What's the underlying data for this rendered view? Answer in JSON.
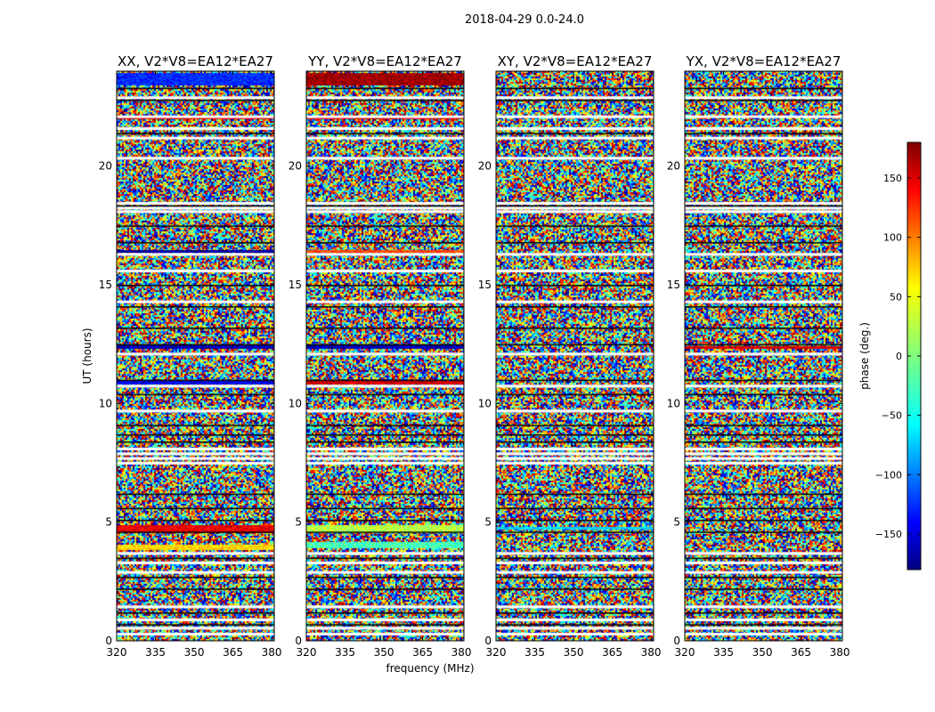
{
  "figure": {
    "suptitle": "2018-04-29 0.0-24.0"
  },
  "chart_data": {
    "type": "heatmap",
    "title": "2018-04-29 0.0-24.0",
    "xlabel": "frequency (MHz)",
    "ylabel": "UT (hours)",
    "xlim": [
      320,
      381
    ],
    "ylim": [
      0,
      24
    ],
    "x_ticks": [
      320,
      335,
      350,
      365,
      380
    ],
    "y_ticks": [
      0,
      5,
      10,
      15,
      20
    ],
    "colorbar": {
      "label": "phase (deg.)",
      "range": [
        -180,
        180
      ],
      "ticks": [
        -150,
        -100,
        -50,
        0,
        50,
        100,
        150
      ],
      "colormap": "jet"
    },
    "flagged_hours_white": [
      0.3,
      0.55,
      0.9,
      1.45,
      2.9,
      3.3,
      3.7,
      7.5,
      7.7,
      7.9,
      8.1,
      9.7,
      10.75,
      12.1,
      14.3,
      15.6,
      16.3,
      18.1,
      18.25,
      18.45,
      20.35,
      21.2,
      21.6,
      22.1,
      22.9
    ],
    "flagged_hours_black": [
      0.7,
      1.2,
      2.2,
      2.7,
      3.5,
      4.6,
      5.1,
      5.6,
      6.2,
      8.4,
      8.7,
      9.1,
      10.4,
      11.0,
      12.5,
      13.2,
      14.1,
      15.0,
      16.8,
      17.5,
      18.35,
      21.4,
      22.8,
      23.3
    ],
    "panels": [
      {
        "name": "XX, V2*V8=EA12*EA27",
        "features": [
          {
            "hours": [
              4.55,
              4.85
            ],
            "phase_deg": 140
          },
          {
            "hours": [
              3.85,
              4.05
            ],
            "phase_deg": 60
          },
          {
            "hours": [
              10.8,
              10.95
            ],
            "phase_deg": -140
          },
          {
            "hours": [
              12.3,
              12.45
            ],
            "phase_deg": -160
          },
          {
            "hours": [
              16.35,
              16.45
            ],
            "phase_deg": -170
          },
          {
            "hours": [
              22.0,
              22.1
            ],
            "phase_deg": 150
          },
          {
            "hours": [
              23.4,
              23.9
            ],
            "phase_deg": -120
          }
        ]
      },
      {
        "name": "YY, V2*V8=EA12*EA27",
        "features": [
          {
            "hours": [
              4.55,
              4.85
            ],
            "phase_deg": 20
          },
          {
            "hours": [
              3.9,
              4.15
            ],
            "phase_deg": -20
          },
          {
            "hours": [
              10.8,
              10.95
            ],
            "phase_deg": 150
          },
          {
            "hours": [
              12.3,
              12.45
            ],
            "phase_deg": -160
          },
          {
            "hours": [
              16.35,
              16.45
            ],
            "phase_deg": 110
          },
          {
            "hours": [
              22.0,
              22.1
            ],
            "phase_deg": 150
          },
          {
            "hours": [
              23.4,
              23.9
            ],
            "phase_deg": 170
          }
        ]
      },
      {
        "name": "XY, V2*V8=EA12*EA27",
        "features": [
          {
            "hours": [
              4.7,
              4.8
            ],
            "phase_deg": -60
          }
        ]
      },
      {
        "name": "YX, V2*V8=EA12*EA27",
        "features": [
          {
            "hours": [
              12.3,
              12.4
            ],
            "phase_deg": 150
          }
        ]
      }
    ]
  }
}
